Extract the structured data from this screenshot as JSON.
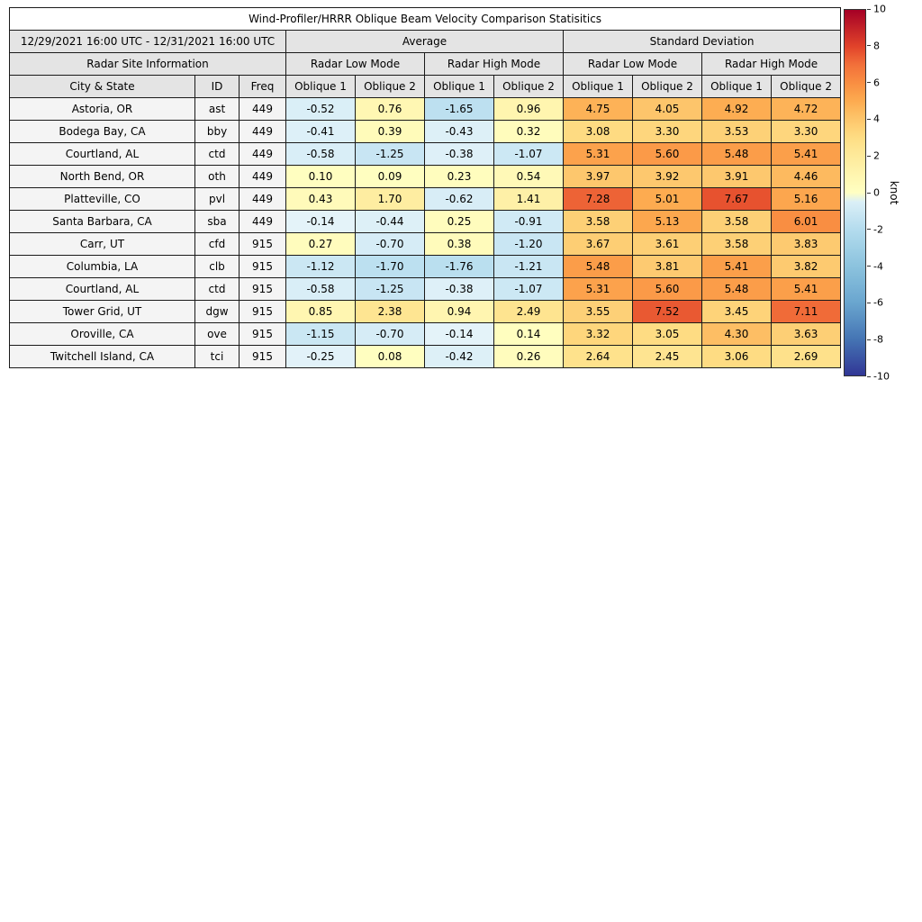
{
  "chart_data": {
    "type": "heatmap",
    "title": "Wind-Profiler/HRRR Oblique Beam Velocity Comparison Statisitics",
    "header": {
      "date_range": "12/29/2021 16:00 UTC - 12/31/2021 16:00 UTC",
      "average": "Average",
      "std": "Standard Deviation",
      "site_info": "Radar Site Information",
      "low_mode": "Radar Low Mode",
      "high_mode": "Radar High Mode",
      "city": "City & State",
      "id": "ID",
      "freq": "Freq",
      "oblique1": "Oblique 1",
      "oblique2": "Oblique 2"
    },
    "rows": [
      {
        "city": "Astoria, OR",
        "id": "ast",
        "freq": "449",
        "values": [
          -0.52,
          0.76,
          -1.65,
          0.96,
          4.75,
          4.05,
          4.92,
          4.72
        ]
      },
      {
        "city": "Bodega Bay, CA",
        "id": "bby",
        "freq": "449",
        "values": [
          -0.41,
          0.39,
          -0.43,
          0.32,
          3.08,
          3.3,
          3.53,
          3.3
        ]
      },
      {
        "city": "Courtland, AL",
        "id": "ctd",
        "freq": "449",
        "values": [
          -0.58,
          -1.25,
          -0.38,
          -1.07,
          5.31,
          5.6,
          5.48,
          5.41
        ]
      },
      {
        "city": "North Bend, OR",
        "id": "oth",
        "freq": "449",
        "values": [
          0.1,
          0.09,
          0.23,
          0.54,
          3.97,
          3.92,
          3.91,
          4.46
        ]
      },
      {
        "city": "Platteville, CO",
        "id": "pvl",
        "freq": "449",
        "values": [
          0.43,
          1.7,
          -0.62,
          1.41,
          7.28,
          5.01,
          7.67,
          5.16
        ]
      },
      {
        "city": "Santa Barbara, CA",
        "id": "sba",
        "freq": "449",
        "values": [
          -0.14,
          -0.44,
          0.25,
          -0.91,
          3.58,
          5.13,
          3.58,
          6.01
        ]
      },
      {
        "city": "Carr, UT",
        "id": "cfd",
        "freq": "915",
        "values": [
          0.27,
          -0.7,
          0.38,
          -1.2,
          3.67,
          3.61,
          3.58,
          3.83
        ]
      },
      {
        "city": "Columbia, LA",
        "id": "clb",
        "freq": "915",
        "values": [
          -1.12,
          -1.7,
          -1.76,
          -1.21,
          5.48,
          3.81,
          5.41,
          3.82
        ]
      },
      {
        "city": "Courtland, AL",
        "id": "ctd",
        "freq": "915",
        "values": [
          -0.58,
          -1.25,
          -0.38,
          -1.07,
          5.31,
          5.6,
          5.48,
          5.41
        ]
      },
      {
        "city": "Tower Grid, UT",
        "id": "dgw",
        "freq": "915",
        "values": [
          0.85,
          2.38,
          0.94,
          2.49,
          3.55,
          7.52,
          3.45,
          7.11
        ]
      },
      {
        "city": "Oroville, CA",
        "id": "ove",
        "freq": "915",
        "values": [
          -1.15,
          -0.7,
          -0.14,
          0.14,
          3.32,
          3.05,
          4.3,
          3.63
        ]
      },
      {
        "city": "Twitchell Island, CA",
        "id": "tci",
        "freq": "915",
        "values": [
          -0.25,
          0.08,
          -0.42,
          0.26,
          2.64,
          2.45,
          3.06,
          2.69
        ]
      }
    ],
    "colorbar": {
      "label": "knot",
      "min": -10,
      "max": 10,
      "ticks": [
        10,
        8,
        6,
        4,
        2,
        0,
        -2,
        -4,
        -6,
        -8,
        -10
      ],
      "colormap_stops": {
        "negative": [
          [
            -10,
            "#313695"
          ],
          [
            -8,
            "#4575b4"
          ],
          [
            -6,
            "#6aa6cf"
          ],
          [
            -4,
            "#8cc3de"
          ],
          [
            -2,
            "#b4dcee"
          ],
          [
            0,
            "#e8f5fa"
          ]
        ],
        "positive": [
          [
            0,
            "#ffffc2"
          ],
          [
            2,
            "#feea9b"
          ],
          [
            3,
            "#fedd84"
          ],
          [
            4,
            "#fdc66c"
          ],
          [
            5,
            "#fdab50"
          ],
          [
            6,
            "#f98e42"
          ],
          [
            7,
            "#f2703a"
          ],
          [
            8,
            "#e1432a"
          ],
          [
            10,
            "#a50026"
          ]
        ]
      }
    }
  }
}
